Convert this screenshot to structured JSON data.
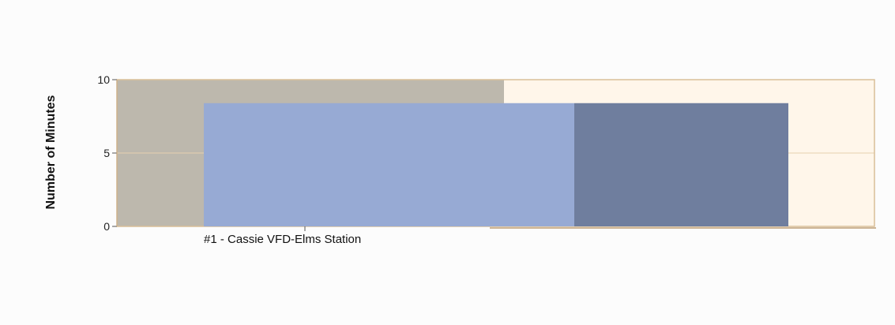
{
  "chart_data": {
    "type": "bar",
    "categories": [
      "#1 - Cassie VFD-Elms Station"
    ],
    "series": [
      {
        "values": [
          8.4
        ],
        "color": "#97aad4"
      },
      {
        "values": [
          8.4
        ],
        "color": "#6f7e9e"
      }
    ],
    "title": "",
    "xlabel": "",
    "ylabel": "Number of Minutes",
    "ylim": [
      0,
      10
    ],
    "yticks": [
      0,
      5,
      10
    ],
    "grid": true,
    "colors": {
      "plot_background": "#fff6ea",
      "plot_border": "#d9bf98",
      "left_band": "#bdb8ad",
      "gridline": "#e6d0ae",
      "axis": "#555555"
    }
  }
}
